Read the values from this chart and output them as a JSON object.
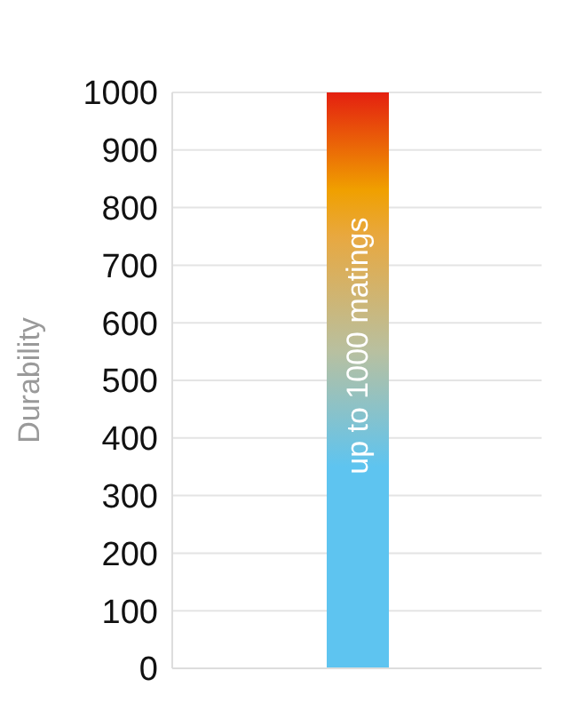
{
  "chart_data": {
    "type": "bar",
    "ylabel": "Durability",
    "categories": [
      null
    ],
    "values": [
      1000
    ],
    "color": "#5ec4f0",
    "ylim": [
      0,
      1000
    ],
    "yticks": [
      0,
      100,
      200,
      300,
      400,
      500,
      600,
      700,
      800,
      900,
      1000
    ],
    "grid": "y",
    "annotations": [
      "up to 1000 matings"
    ]
  }
}
